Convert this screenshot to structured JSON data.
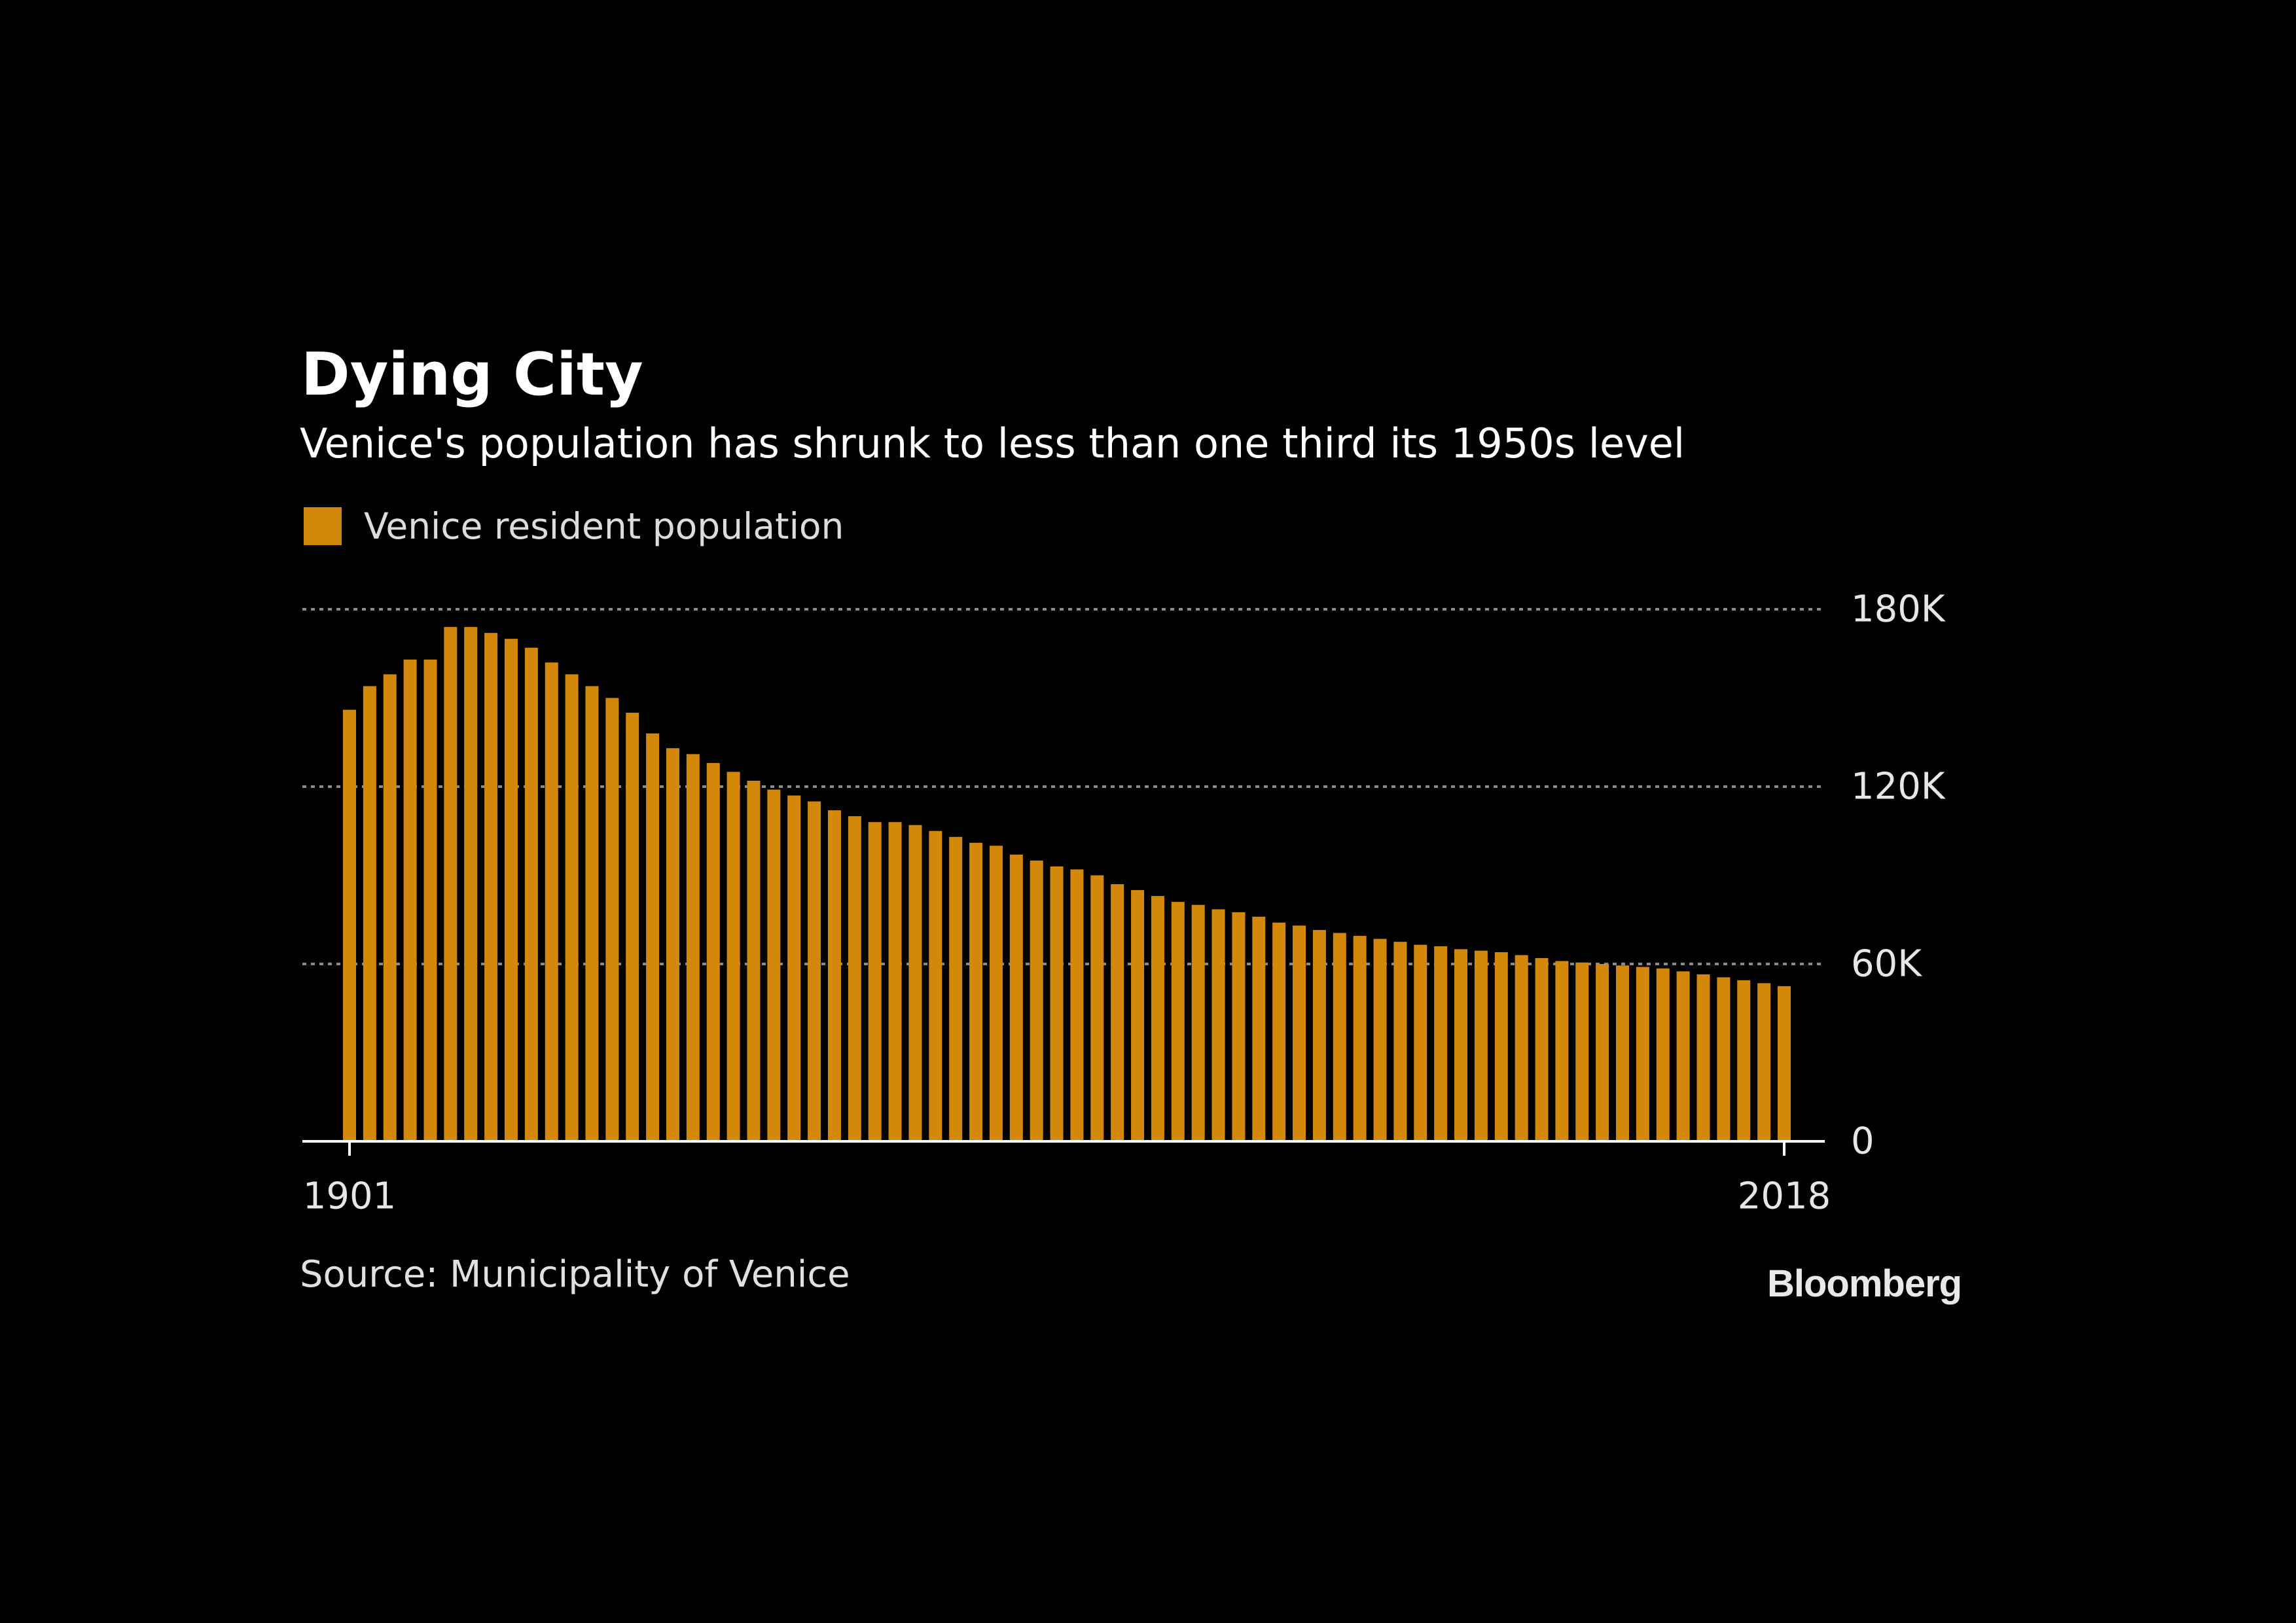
{
  "colors": {
    "background": "#000000",
    "bar": "#d4880a",
    "gridline": "#8a8a8a",
    "axis": "#ffffff",
    "text": "#ffffff"
  },
  "chart_data": {
    "type": "bar",
    "title": "Dying City",
    "subtitle": "Venice's population has shrunk to less than one third its 1950s level",
    "legend": {
      "entries": [
        "Venice resident population"
      ],
      "placement": "top-left"
    },
    "series": [
      {
        "name": "Venice resident population",
        "color": "#d4880a",
        "values": [
          146000,
          154000,
          158000,
          163000,
          163000,
          174000,
          174000,
          172000,
          170000,
          167000,
          162000,
          158000,
          154000,
          150000,
          145000,
          138000,
          133000,
          131000,
          128000,
          125000,
          122000,
          119000,
          117000,
          115000,
          112000,
          110000,
          108000,
          108000,
          107000,
          105000,
          103000,
          101000,
          100000,
          97000,
          95000,
          93000,
          92000,
          90000,
          87000,
          85000,
          83000,
          81000,
          80000,
          78500,
          77500,
          76000,
          74000,
          73000,
          71500,
          70500,
          69500,
          68500,
          67500,
          66500,
          66000,
          65000,
          64500,
          64000,
          63000,
          62000,
          61000,
          60500,
          60000,
          59500,
          59000,
          58500,
          57500,
          56500,
          55500,
          54500,
          53500,
          52500
        ]
      }
    ],
    "x_range": [
      1901,
      2018
    ],
    "x_tick_labels": [
      "1901",
      "2018"
    ],
    "ylim": [
      0,
      180000
    ],
    "y_ticks": [
      0,
      60000,
      120000,
      180000
    ],
    "y_tick_labels": [
      "0",
      "60K",
      "120K",
      "180K"
    ],
    "y_axis_side": "right",
    "grid": true
  },
  "source": "Source: Municipality of Venice",
  "logo": "Bloomberg"
}
